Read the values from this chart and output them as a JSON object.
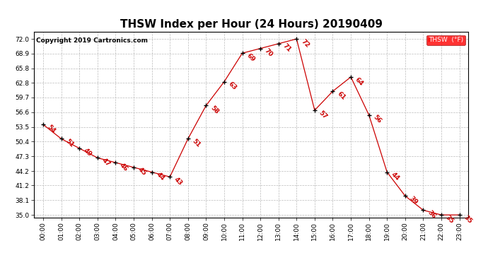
{
  "title": "THSW Index per Hour (24 Hours) 20190409",
  "copyright": "Copyright 2019 Cartronics.com",
  "legend_label": "THSW  (°F)",
  "hours": [
    0,
    1,
    2,
    3,
    4,
    5,
    6,
    7,
    8,
    9,
    10,
    11,
    12,
    13,
    14,
    15,
    16,
    17,
    18,
    19,
    20,
    21,
    22,
    23
  ],
  "values": [
    54,
    51,
    49,
    47,
    46,
    45,
    44,
    43,
    51,
    58,
    63,
    69,
    70,
    71,
    72,
    57,
    61,
    64,
    56,
    44,
    39,
    36,
    35,
    35
  ],
  "line_color": "#cc0000",
  "marker_color": "#000000",
  "label_color": "#cc0000",
  "background_color": "#ffffff",
  "grid_color": "#bbbbbb",
  "yticks": [
    35.0,
    38.1,
    41.2,
    44.2,
    47.3,
    50.4,
    53.5,
    56.6,
    59.7,
    62.8,
    65.8,
    68.9,
    72.0
  ],
  "ylim": [
    34.5,
    73.5
  ],
  "xlim": [
    -0.5,
    23.5
  ],
  "title_fontsize": 11,
  "label_fontsize": 6.5,
  "tick_fontsize": 6.5,
  "copyright_fontsize": 6.5
}
